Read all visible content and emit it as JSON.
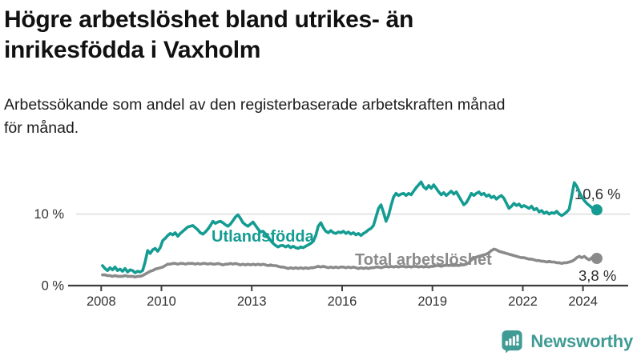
{
  "header": {
    "title_line1": "Högre arbetslöshet bland utrikes- än",
    "title_line2": "inrikesfödda i Vaxholm",
    "subtitle_line1": "Arbetssökande som andel av den registerbaserade arbetskraften månad",
    "subtitle_line2": "för månad."
  },
  "chart_data": {
    "type": "line",
    "title": "Högre arbetslöshet bland utrikes- än inrikesfödda i Vaxholm",
    "subtitle": "Arbetssökande som andel av den registerbaserade arbetskraften månad för månad.",
    "y_unit": "%",
    "grid": "single horizontal gridline at 10 %",
    "legend": "inline series labels",
    "xlim": [
      2006.9,
      2025.5
    ],
    "ylim": [
      0,
      16
    ],
    "x_ticks": [
      2008,
      2010,
      2013,
      2016,
      2019,
      2022,
      2024
    ],
    "y_ticks": [
      {
        "value": 10,
        "label": "10 %"
      },
      {
        "value": 0,
        "label": "0 %"
      }
    ],
    "series": [
      {
        "name": "Utlandsfödda",
        "color": "#149c92",
        "end_label": "10,6 %",
        "end_value": 10.6,
        "start_year": 2008,
        "frequency": "monthly",
        "monthly_values": [
          2.8,
          2.4,
          2.1,
          2.5,
          2.2,
          2.6,
          2.1,
          2.3,
          2.0,
          2.4,
          1.9,
          2.2,
          2.1,
          1.8,
          2.0,
          1.9,
          2.1,
          3.3,
          4.9,
          4.5,
          5.0,
          5.2,
          4.8,
          5.3,
          6.3,
          6.6,
          7.0,
          7.3,
          7.1,
          7.4,
          6.9,
          7.3,
          7.6,
          7.9,
          8.2,
          8.3,
          8.4,
          8.1,
          7.8,
          7.4,
          7.2,
          7.5,
          7.9,
          8.4,
          9.0,
          8.7,
          8.9,
          9.0,
          8.8,
          8.5,
          8.3,
          8.6,
          9.1,
          9.6,
          9.9,
          9.4,
          8.8,
          8.5,
          8.3,
          8.6,
          8.9,
          8.4,
          7.9,
          7.5,
          7.6,
          7.2,
          6.8,
          6.3,
          5.9,
          5.6,
          5.4,
          5.6,
          5.6,
          5.4,
          5.6,
          5.3,
          5.5,
          5.3,
          5.2,
          5.4,
          5.3,
          5.5,
          5.7,
          5.9,
          6.2,
          7.0,
          8.3,
          8.8,
          8.1,
          7.6,
          7.4,
          7.7,
          7.4,
          7.3,
          7.5,
          7.4,
          7.6,
          7.3,
          7.5,
          7.2,
          7.4,
          7.1,
          7.3,
          7.0,
          7.3,
          7.5,
          7.8,
          8.0,
          8.4,
          9.6,
          10.8,
          11.3,
          10.2,
          9.0,
          9.8,
          11.2,
          12.4,
          12.9,
          12.6,
          12.8,
          12.9,
          12.6,
          12.9,
          12.7,
          13.2,
          13.7,
          14.1,
          14.5,
          13.8,
          13.5,
          14.0,
          13.6,
          14.1,
          13.6,
          13.1,
          12.7,
          13.0,
          12.6,
          12.9,
          13.2,
          12.8,
          13.1,
          12.5,
          11.9,
          11.3,
          11.6,
          12.2,
          12.9,
          12.6,
          12.9,
          13.1,
          12.7,
          12.9,
          12.5,
          12.7,
          12.3,
          12.5,
          12.1,
          12.4,
          12.6,
          12.2,
          11.5,
          10.8,
          11.1,
          11.5,
          11.2,
          11.4,
          11.0,
          11.2,
          11.0,
          10.8,
          11.1,
          10.6,
          10.8,
          10.3,
          10.5,
          10.1,
          10.3,
          10.0,
          10.2,
          10.1,
          10.4,
          10.0,
          9.8,
          10.0,
          10.3,
          10.7,
          12.5,
          14.4,
          13.9,
          13.1,
          12.4,
          11.9,
          11.5,
          11.2,
          10.9,
          10.7,
          10.6
        ]
      },
      {
        "name": "Total arbetslöshet",
        "color": "#8a8a8a",
        "end_label": "3,8 %",
        "end_value": 3.8,
        "start_year": 2008,
        "frequency": "monthly",
        "monthly_values": [
          1.5,
          1.5,
          1.4,
          1.4,
          1.3,
          1.4,
          1.3,
          1.3,
          1.3,
          1.4,
          1.3,
          1.3,
          1.3,
          1.2,
          1.3,
          1.3,
          1.4,
          1.6,
          1.8,
          2.0,
          2.1,
          2.3,
          2.4,
          2.5,
          2.6,
          2.8,
          3.0,
          3.0,
          3.1,
          3.1,
          3.0,
          3.1,
          3.1,
          3.0,
          3.1,
          3.1,
          3.1,
          3.0,
          3.1,
          3.0,
          3.1,
          3.1,
          3.0,
          3.1,
          3.0,
          3.0,
          3.1,
          3.0,
          2.9,
          3.0,
          3.0,
          3.1,
          3.0,
          3.1,
          3.0,
          2.9,
          3.0,
          2.9,
          3.0,
          2.9,
          3.0,
          2.9,
          3.0,
          2.9,
          3.0,
          2.9,
          2.8,
          2.9,
          2.8,
          2.8,
          2.7,
          2.6,
          2.6,
          2.5,
          2.4,
          2.5,
          2.4,
          2.5,
          2.4,
          2.5,
          2.4,
          2.5,
          2.4,
          2.5,
          2.5,
          2.6,
          2.7,
          2.6,
          2.7,
          2.6,
          2.5,
          2.6,
          2.5,
          2.6,
          2.5,
          2.6,
          2.6,
          2.5,
          2.6,
          2.5,
          2.6,
          2.5,
          2.4,
          2.5,
          2.4,
          2.5,
          2.4,
          2.5,
          2.5,
          2.6,
          2.6,
          2.5,
          2.6,
          2.7,
          2.6,
          2.7,
          2.6,
          2.7,
          2.6,
          2.7,
          2.7,
          2.6,
          2.7,
          2.6,
          2.7,
          2.7,
          2.6,
          2.7,
          2.6,
          2.7,
          2.6,
          2.7,
          2.7,
          2.8,
          2.8,
          2.7,
          2.8,
          2.9,
          2.8,
          2.9,
          2.8,
          2.9,
          2.8,
          2.9,
          2.9,
          3.0,
          3.2,
          3.6,
          3.8,
          4.0,
          4.1,
          4.2,
          4.3,
          4.4,
          4.6,
          4.9,
          5.1,
          5.0,
          4.8,
          4.7,
          4.6,
          4.5,
          4.4,
          4.3,
          4.2,
          4.1,
          4.0,
          3.9,
          3.9,
          3.8,
          3.7,
          3.7,
          3.6,
          3.5,
          3.5,
          3.4,
          3.4,
          3.3,
          3.4,
          3.3,
          3.3,
          3.2,
          3.2,
          3.1,
          3.2,
          3.2,
          3.3,
          3.4,
          3.6,
          3.9,
          4.1,
          3.9,
          4.1,
          3.8,
          3.6,
          3.9,
          4.1,
          3.8
        ]
      }
    ]
  },
  "branding": {
    "logo_text": "Newsworthy",
    "logo_color": "#3f9b94",
    "logo_icon": "speech-bubble-bar-chart-exclamation"
  }
}
